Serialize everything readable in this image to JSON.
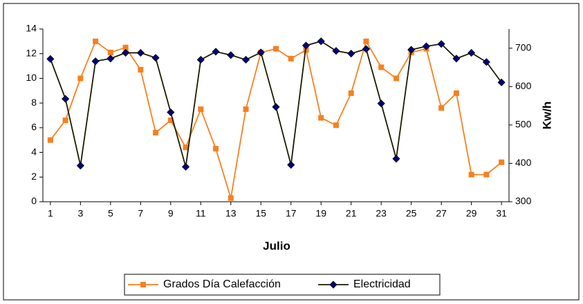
{
  "chart_data": {
    "type": "line",
    "x": [
      1,
      2,
      3,
      4,
      5,
      6,
      7,
      8,
      9,
      10,
      11,
      12,
      13,
      14,
      15,
      16,
      17,
      18,
      19,
      20,
      21,
      22,
      23,
      24,
      25,
      26,
      27,
      28,
      29,
      30,
      31
    ],
    "xlim": [
      0.5,
      31.5
    ],
    "xticks": [
      1,
      3,
      5,
      7,
      9,
      11,
      13,
      15,
      17,
      19,
      21,
      23,
      25,
      27,
      29,
      31
    ],
    "xlabel": "Julio",
    "y2label": "Kw/h",
    "ylim": [
      0,
      14
    ],
    "yticks": [
      0,
      2,
      4,
      6,
      8,
      10,
      12,
      14
    ],
    "y2lim": [
      300,
      750
    ],
    "y2ticks": [
      300,
      400,
      500,
      600,
      700
    ],
    "legend": "bottom",
    "series": [
      {
        "name": "Grados Día Calefacción",
        "color": "#f7801e",
        "marker": "square",
        "values": [
          5.0,
          6.6,
          10.0,
          13.0,
          12.1,
          12.5,
          10.7,
          5.6,
          6.6,
          4.4,
          7.5,
          4.3,
          0.3,
          7.5,
          12.1,
          12.4,
          11.6,
          12.3,
          6.8,
          6.2,
          8.8,
          13.0,
          10.9,
          10.0,
          12.1,
          12.4,
          7.6,
          8.8,
          2.2,
          2.2,
          3.2
        ]
      },
      {
        "name": "Electricidad",
        "color": "#1a1a00",
        "marker_color": "#000080",
        "marker": "diamond",
        "axis": "y2",
        "values": [
          672,
          568,
          394,
          666,
          673,
          688,
          688,
          675,
          533,
          391,
          670,
          691,
          682,
          670,
          689,
          547,
          396,
          707,
          718,
          693,
          686,
          698,
          556,
          412,
          696,
          705,
          711,
          673,
          688,
          664,
          611
        ]
      }
    ]
  }
}
